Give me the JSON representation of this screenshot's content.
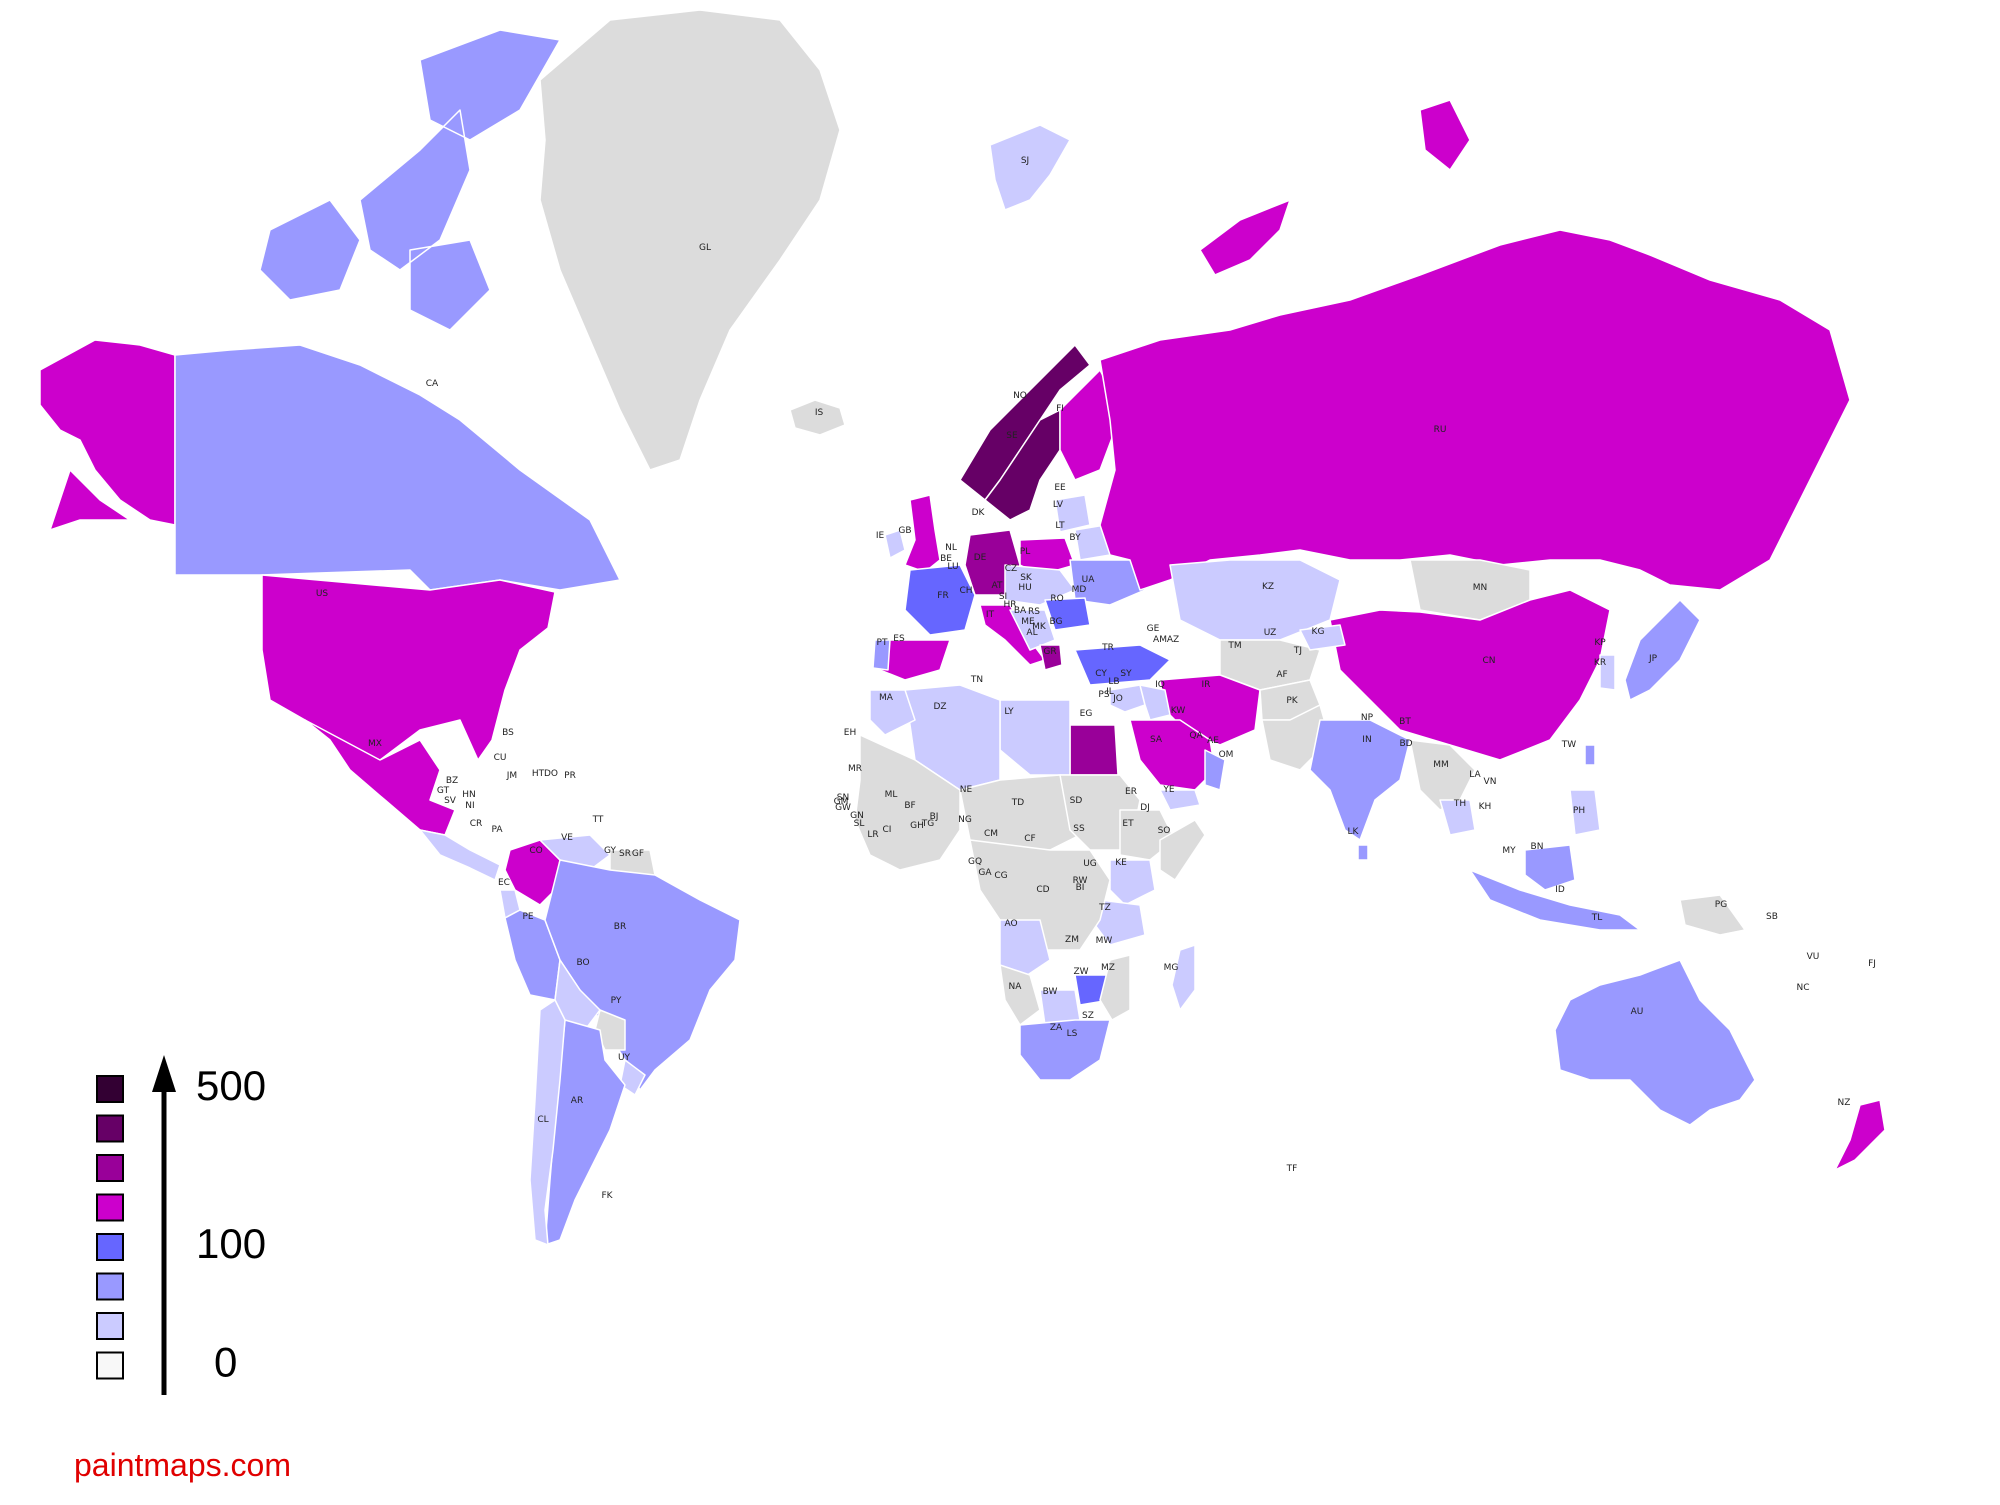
{
  "map": {
    "source_credit": "paintmaps.com",
    "credit_color": "#e00000",
    "no_data_color": "#dcdcdc",
    "border_color": "#ffffff",
    "scale_colors": [
      "#f8f8f8",
      "#cbcbff",
      "#9999ff",
      "#6666ff",
      "#cc00cc",
      "#990099",
      "#660066",
      "#330033"
    ],
    "legend": {
      "bin_count": 8,
      "labels": [
        {
          "text": "500",
          "bin": 7
        },
        {
          "text": "100",
          "bin": 3
        },
        {
          "text": "0",
          "bin": 0
        }
      ],
      "arrow": "increasing-value-arrow"
    },
    "regions": [
      {
        "name": "Alaska",
        "bin": 4
      },
      {
        "name": "Canada",
        "code": "CA",
        "bin": 2
      },
      {
        "name": "Canadian Arctic Islands",
        "bin": 2
      },
      {
        "name": "Greenland",
        "code": "GL",
        "bin": -1
      },
      {
        "name": "Iceland",
        "code": "IS",
        "bin": -1
      },
      {
        "name": "United States",
        "code": "US",
        "bin": 4
      },
      {
        "name": "Mexico",
        "code": "MX",
        "bin": 4
      },
      {
        "name": "Central America",
        "bin": 1
      },
      {
        "name": "Colombia",
        "code": "CO",
        "bin": 4
      },
      {
        "name": "Venezuela",
        "code": "VE",
        "bin": 1
      },
      {
        "name": "Guianas",
        "bin": -1
      },
      {
        "name": "Ecuador",
        "code": "EC",
        "bin": 1
      },
      {
        "name": "Peru",
        "code": "PE",
        "bin": 2
      },
      {
        "name": "Brazil",
        "code": "BR",
        "bin": 2
      },
      {
        "name": "Bolivia",
        "code": "BO",
        "bin": 1
      },
      {
        "name": "Paraguay",
        "code": "PY",
        "bin": -1
      },
      {
        "name": "Uruguay",
        "code": "UY",
        "bin": 1
      },
      {
        "name": "Argentina",
        "code": "AR",
        "bin": 2
      },
      {
        "name": "Chile",
        "code": "CL",
        "bin": 1
      },
      {
        "name": "Ireland",
        "code": "IE",
        "bin": 1
      },
      {
        "name": "United Kingdom",
        "code": "GB",
        "bin": 4
      },
      {
        "name": "Norway",
        "code": "NO",
        "bin": 6
      },
      {
        "name": "Sweden",
        "code": "SE",
        "bin": 6
      },
      {
        "name": "Finland",
        "code": "FI",
        "bin": 4
      },
      {
        "name": "Svalbard",
        "code": "SJ",
        "bin": 1
      },
      {
        "name": "Baltics",
        "bin": 1
      },
      {
        "name": "Belarus",
        "code": "BY",
        "bin": 1
      },
      {
        "name": "Poland",
        "code": "PL",
        "bin": 4
      },
      {
        "name": "Germany",
        "code": "DE",
        "bin": 5
      },
      {
        "name": "France",
        "code": "FR",
        "bin": 3
      },
      {
        "name": "Iberia",
        "code": "ES",
        "bin": 4
      },
      {
        "name": "Portugal",
        "code": "PT",
        "bin": 2
      },
      {
        "name": "Italy",
        "code": "IT",
        "bin": 4
      },
      {
        "name": "Central Europe",
        "bin": 1
      },
      {
        "name": "Ukraine",
        "code": "UA",
        "bin": 2
      },
      {
        "name": "Romania",
        "code": "RO",
        "bin": 3
      },
      {
        "name": "Balkans",
        "bin": 1
      },
      {
        "name": "Greece",
        "code": "GR",
        "bin": 5
      },
      {
        "name": "Turkey",
        "code": "TR",
        "bin": 3
      },
      {
        "name": "Russia",
        "code": "RU",
        "bin": 4
      },
      {
        "name": "Novaya Zemlya",
        "bin": 4
      },
      {
        "name": "Kazakhstan",
        "code": "KZ",
        "bin": 1
      },
      {
        "name": "Mongolia",
        "code": "MN",
        "bin": -1
      },
      {
        "name": "China",
        "code": "CN",
        "bin": 4
      },
      {
        "name": "Central Asia",
        "bin": -1
      },
      {
        "name": "Kyrgyzstan",
        "code": "KG",
        "bin": 1
      },
      {
        "name": "Iran",
        "code": "IR",
        "bin": 4
      },
      {
        "name": "Afghanistan",
        "code": "AF",
        "bin": -1
      },
      {
        "name": "Pakistan",
        "code": "PK",
        "bin": -1
      },
      {
        "name": "India",
        "code": "IN",
        "bin": 2
      },
      {
        "name": "Sri Lanka",
        "code": "LK",
        "bin": 2
      },
      {
        "name": "Levant",
        "bin": 1
      },
      {
        "name": "Iraq",
        "code": "IQ",
        "bin": 1
      },
      {
        "name": "Saudi Arabia",
        "code": "SA",
        "bin": 4
      },
      {
        "name": "Yemen",
        "code": "YE",
        "bin": 1
      },
      {
        "name": "Oman",
        "code": "OM",
        "bin": 2
      },
      {
        "name": "Egypt",
        "code": "EG",
        "bin": 5
      },
      {
        "name": "Libya",
        "code": "LY",
        "bin": 1
      },
      {
        "name": "Algeria",
        "code": "DZ",
        "bin": 1
      },
      {
        "name": "Morocco",
        "code": "MA",
        "bin": 1
      },
      {
        "name": "West Africa",
        "bin": -1
      },
      {
        "name": "Sahel",
        "bin": -1
      },
      {
        "name": "Sudan",
        "code": "SD",
        "bin": -1
      },
      {
        "name": "Ethiopia",
        "code": "ET",
        "bin": -1
      },
      {
        "name": "Somalia",
        "code": "SO",
        "bin": -1
      },
      {
        "name": "Kenya",
        "code": "KE",
        "bin": 1
      },
      {
        "name": "Tanzania",
        "code": "TZ",
        "bin": 1
      },
      {
        "name": "Central Africa",
        "bin": -1
      },
      {
        "name": "Angola",
        "code": "AO",
        "bin": 1
      },
      {
        "name": "Namibia",
        "code": "NA",
        "bin": -1
      },
      {
        "name": "Botswana",
        "code": "BW",
        "bin": 1
      },
      {
        "name": "Zimbabwe",
        "code": "ZW",
        "bin": 3
      },
      {
        "name": "Mozambique",
        "code": "MZ",
        "bin": -1
      },
      {
        "name": "South Africa",
        "code": "ZA",
        "bin": 2
      },
      {
        "name": "Madagascar",
        "code": "MG",
        "bin": 1
      },
      {
        "name": "Southeast Asia",
        "bin": -1
      },
      {
        "name": "Thailand",
        "code": "TH",
        "bin": 1
      },
      {
        "name": "Korea",
        "code": "KR",
        "bin": 1
      },
      {
        "name": "Japan",
        "code": "JP",
        "bin": 2
      },
      {
        "name": "Taiwan",
        "code": "TW",
        "bin": 2
      },
      {
        "name": "Philippines",
        "code": "PH",
        "bin": 1
      },
      {
        "name": "Indonesia",
        "code": "ID",
        "bin": 2
      },
      {
        "name": "Borneo",
        "bin": 2
      },
      {
        "name": "New Guinea",
        "code": "PG",
        "bin": -1
      },
      {
        "name": "Australia",
        "code": "AU",
        "bin": 2
      },
      {
        "name": "New Zealand",
        "code": "NZ",
        "bin": 4
      }
    ],
    "labels": [
      {
        "code": "GL"
      },
      {
        "code": "CA"
      },
      {
        "code": "IS"
      },
      {
        "code": "US"
      },
      {
        "code": "MX"
      },
      {
        "code": "BS"
      },
      {
        "code": "CU"
      },
      {
        "code": "JM"
      },
      {
        "code": "HT"
      },
      {
        "code": "DO"
      },
      {
        "code": "PR"
      },
      {
        "code": "BZ"
      },
      {
        "code": "GT"
      },
      {
        "code": "HN"
      },
      {
        "code": "SV"
      },
      {
        "code": "NI"
      },
      {
        "code": "CR"
      },
      {
        "code": "PA"
      },
      {
        "code": "TT"
      },
      {
        "code": "VE"
      },
      {
        "code": "GY"
      },
      {
        "code": "SR"
      },
      {
        "code": "GF"
      },
      {
        "code": "CO"
      },
      {
        "code": "EC"
      },
      {
        "code": "PE"
      },
      {
        "code": "BR"
      },
      {
        "code": "BO"
      },
      {
        "code": "PY"
      },
      {
        "code": "UY"
      },
      {
        "code": "AR"
      },
      {
        "code": "CL"
      },
      {
        "code": "FK"
      },
      {
        "code": "SJ"
      },
      {
        "code": "NO"
      },
      {
        "code": "SE"
      },
      {
        "code": "FI"
      },
      {
        "code": "DK"
      },
      {
        "code": "IE"
      },
      {
        "code": "GB"
      },
      {
        "code": "NL"
      },
      {
        "code": "BE"
      },
      {
        "code": "LU"
      },
      {
        "code": "DE"
      },
      {
        "code": "FR"
      },
      {
        "code": "CH"
      },
      {
        "code": "AT"
      },
      {
        "code": "IT"
      },
      {
        "code": "CZ"
      },
      {
        "code": "SK"
      },
      {
        "code": "PL"
      },
      {
        "code": "HU"
      },
      {
        "code": "SI"
      },
      {
        "code": "HR"
      },
      {
        "code": "BA"
      },
      {
        "code": "RS"
      },
      {
        "code": "ME"
      },
      {
        "code": "MK"
      },
      {
        "code": "AL"
      },
      {
        "code": "GR"
      },
      {
        "code": "BG"
      },
      {
        "code": "RO"
      },
      {
        "code": "MD"
      },
      {
        "code": "UA"
      },
      {
        "code": "BY"
      },
      {
        "code": "LT"
      },
      {
        "code": "LV"
      },
      {
        "code": "EE"
      },
      {
        "code": "RU"
      },
      {
        "code": "ES"
      },
      {
        "code": "PT"
      },
      {
        "code": "TR"
      },
      {
        "code": "CY"
      },
      {
        "code": "LB"
      },
      {
        "code": "SY"
      },
      {
        "code": "IL"
      },
      {
        "code": "PS"
      },
      {
        "code": "JO"
      },
      {
        "code": "IQ"
      },
      {
        "code": "KW"
      },
      {
        "code": "SA"
      },
      {
        "code": "QA"
      },
      {
        "code": "AE"
      },
      {
        "code": "OM"
      },
      {
        "code": "YE"
      },
      {
        "code": "GE"
      },
      {
        "code": "AM"
      },
      {
        "code": "AZ"
      },
      {
        "code": "IR"
      },
      {
        "code": "KZ"
      },
      {
        "code": "UZ"
      },
      {
        "code": "TM"
      },
      {
        "code": "KG"
      },
      {
        "code": "TJ"
      },
      {
        "code": "AF"
      },
      {
        "code": "PK"
      },
      {
        "code": "IN"
      },
      {
        "code": "NP"
      },
      {
        "code": "BT"
      },
      {
        "code": "BD"
      },
      {
        "code": "LK"
      },
      {
        "code": "MN"
      },
      {
        "code": "CN"
      },
      {
        "code": "KP"
      },
      {
        "code": "KR"
      },
      {
        "code": "JP"
      },
      {
        "code": "TW"
      },
      {
        "code": "MM"
      },
      {
        "code": "LA"
      },
      {
        "code": "TH"
      },
      {
        "code": "VN"
      },
      {
        "code": "KH"
      },
      {
        "code": "PH"
      },
      {
        "code": "MY"
      },
      {
        "code": "BN"
      },
      {
        "code": "ID"
      },
      {
        "code": "TL"
      },
      {
        "code": "PG"
      },
      {
        "code": "SB"
      },
      {
        "code": "VU"
      },
      {
        "code": "FJ"
      },
      {
        "code": "NC"
      },
      {
        "code": "AU"
      },
      {
        "code": "NZ"
      },
      {
        "code": "TF"
      },
      {
        "code": "MA"
      },
      {
        "code": "DZ"
      },
      {
        "code": "TN"
      },
      {
        "code": "LY"
      },
      {
        "code": "EG"
      },
      {
        "code": "EH"
      },
      {
        "code": "MR"
      },
      {
        "code": "SN"
      },
      {
        "code": "GM"
      },
      {
        "code": "GW"
      },
      {
        "code": "GN"
      },
      {
        "code": "SL"
      },
      {
        "code": "LR"
      },
      {
        "code": "CI"
      },
      {
        "code": "ML"
      },
      {
        "code": "BF"
      },
      {
        "code": "GH"
      },
      {
        "code": "TG"
      },
      {
        "code": "BJ"
      },
      {
        "code": "NE"
      },
      {
        "code": "NG"
      },
      {
        "code": "TD"
      },
      {
        "code": "SD"
      },
      {
        "code": "SS"
      },
      {
        "code": "ER"
      },
      {
        "code": "DJ"
      },
      {
        "code": "ET"
      },
      {
        "code": "SO"
      },
      {
        "code": "CM"
      },
      {
        "code": "CF"
      },
      {
        "code": "GQ"
      },
      {
        "code": "GA"
      },
      {
        "code": "CG"
      },
      {
        "code": "CD"
      },
      {
        "code": "UG"
      },
      {
        "code": "KE"
      },
      {
        "code": "RW"
      },
      {
        "code": "BI"
      },
      {
        "code": "TZ"
      },
      {
        "code": "AO"
      },
      {
        "code": "ZM"
      },
      {
        "code": "MW"
      },
      {
        "code": "MZ"
      },
      {
        "code": "ZW"
      },
      {
        "code": "NA"
      },
      {
        "code": "BW"
      },
      {
        "code": "ZA"
      },
      {
        "code": "LS"
      },
      {
        "code": "SZ"
      },
      {
        "code": "MG"
      }
    ]
  }
}
